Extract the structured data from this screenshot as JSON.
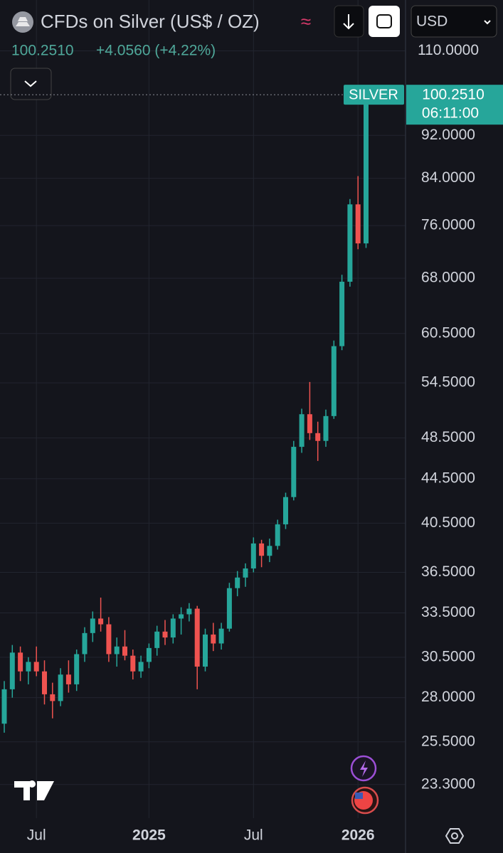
{
  "header": {
    "quote": "100.2510",
    "change": "+4.0560 (+4.22%)",
    "currency": "USD"
  },
  "chart_data": {
    "type": "candlestick",
    "title": "CFDs on Silver (US$ / OZ)",
    "symbol": "SILVER",
    "price_label": "100.2510",
    "countdown": "06:11:00",
    "categories": [
      null,
      null,
      null,
      null,
      "Jul",
      null,
      null,
      null,
      null,
      null,
      null,
      null,
      null,
      null,
      null,
      null,
      null,
      null,
      "2025",
      null,
      null,
      null,
      null,
      null,
      null,
      null,
      null,
      null,
      null,
      null,
      null,
      "Jul",
      null,
      null,
      null,
      null,
      null,
      null,
      null,
      null,
      null,
      null,
      null,
      null,
      "2026",
      null
    ],
    "open": [
      26.5,
      28.5,
      30.8,
      29.6,
      30.2,
      29.6,
      28.2,
      27.8,
      29.4,
      28.8,
      30.7,
      32.1,
      33.1,
      32.7,
      30.7,
      31.2,
      30.6,
      29.6,
      30.2,
      31.1,
      32.2,
      31.8,
      33.1,
      33.4,
      33.8,
      29.9,
      32,
      31.4,
      32.4,
      35.3,
      36.1,
      36.8,
      38.8,
      37.8,
      38.6,
      40.4,
      42.8,
      47.6,
      51,
      49,
      48.2,
      50.8,
      58.9,
      67.5,
      79.5,
      73.2
    ],
    "high": [
      29,
      31.3,
      31.2,
      30.5,
      31.2,
      30.3,
      28.9,
      29.8,
      30.3,
      31,
      32.5,
      33.6,
      34.6,
      33.2,
      31.8,
      32.3,
      31,
      30.6,
      31.4,
      32.6,
      33,
      33.4,
      33.9,
      34.2,
      34,
      32.4,
      32.8,
      32.8,
      35.7,
      36.6,
      37.2,
      39.3,
      39.1,
      39.2,
      40.8,
      43.2,
      48.2,
      51.6,
      54.6,
      50.2,
      51.5,
      59.6,
      68.5,
      80.4,
      84.4,
      100.5
    ],
    "low": [
      26,
      28,
      29,
      28.8,
      29.3,
      27.6,
      26.8,
      27.5,
      28.3,
      28.4,
      30.2,
      31.5,
      32.2,
      30.2,
      29.9,
      30.3,
      29.1,
      29.2,
      29.8,
      30.6,
      31.3,
      31.4,
      32,
      32.9,
      28.5,
      29.6,
      30.9,
      31,
      32.2,
      34.7,
      35.4,
      36.5,
      36.9,
      37.3,
      38.3,
      40,
      42.5,
      47,
      48.3,
      46.2,
      47.6,
      50.5,
      58.4,
      66.8,
      72.3,
      72.5
    ],
    "close": [
      28.5,
      30.8,
      29.6,
      30.2,
      29.6,
      28.2,
      27.8,
      29.4,
      28.8,
      30.7,
      32.1,
      33.1,
      32.7,
      30.7,
      31.2,
      30.6,
      29.6,
      30.2,
      31.1,
      32.2,
      31.8,
      33.1,
      33.4,
      33.8,
      29.9,
      32,
      31.4,
      32.4,
      35.3,
      36.1,
      36.8,
      38.8,
      37.8,
      38.6,
      40.4,
      42.8,
      47.6,
      51,
      49,
      48.2,
      50.8,
      58.9,
      67.5,
      79.5,
      73.2,
      100.251
    ],
    "up_color": "#26a69a",
    "down_color": "#ef5350",
    "log_scale": true,
    "grid": true,
    "ylim": [
      21.7,
      122.5
    ],
    "yticks": [
      {
        "value": 110,
        "label": "110.0000"
      },
      {
        "value": 92,
        "label": "92.0000"
      },
      {
        "value": 84,
        "label": "84.0000"
      },
      {
        "value": 76,
        "label": "76.0000"
      },
      {
        "value": 68,
        "label": "68.0000"
      },
      {
        "value": 60.5,
        "label": "60.5000"
      },
      {
        "value": 54.5,
        "label": "54.5000"
      },
      {
        "value": 48.5,
        "label": "48.5000"
      },
      {
        "value": 44.5,
        "label": "44.5000"
      },
      {
        "value": 40.5,
        "label": "40.5000"
      },
      {
        "value": 36.5,
        "label": "36.5000"
      },
      {
        "value": 33.5,
        "label": "33.5000"
      },
      {
        "value": 30.5,
        "label": "30.5000"
      },
      {
        "value": 28,
        "label": "28.0000"
      },
      {
        "value": 25.5,
        "label": "25.5000"
      },
      {
        "value": 23.3,
        "label": "23.3000"
      }
    ]
  }
}
